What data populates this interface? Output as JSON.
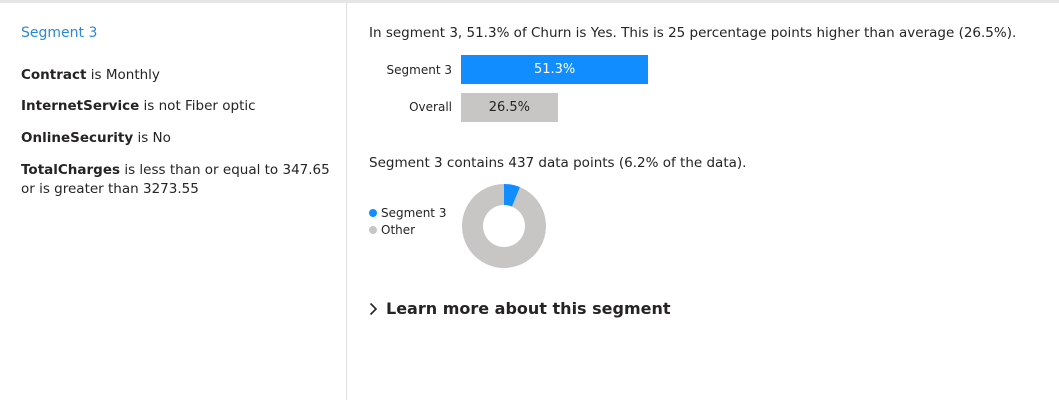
{
  "left": {
    "segment_title": "Segment 3",
    "conditions": [
      {
        "feature": "Contract",
        "text": "is Monthly"
      },
      {
        "feature": "InternetService",
        "text": "is not Fiber optic"
      },
      {
        "feature": "OnlineSecurity",
        "text": "is No"
      },
      {
        "feature": "TotalCharges",
        "text": "is less than or equal to 347.65 or is greater than 3273.55"
      }
    ]
  },
  "right": {
    "headline": "In segment 3, 51.3% of Churn is Yes. This is 25 percentage points higher than average (26.5%).",
    "contains_text": "Segment 3 contains 437 data points (6.2% of the data).",
    "learn_more": "Learn more about this segment"
  },
  "colors": {
    "segment": "#118dff",
    "overall": "#c8c6c4",
    "title_blue": "#2b88d8"
  },
  "chart_data": [
    {
      "type": "bar",
      "orientation": "horizontal",
      "categories": [
        "Segment 3",
        "Overall"
      ],
      "values": [
        51.3,
        26.5
      ],
      "value_labels": [
        "51.3%",
        "26.5%"
      ],
      "xlim": [
        0,
        100
      ]
    },
    {
      "type": "pie",
      "variant": "donut",
      "labels": [
        "Segment 3",
        "Other"
      ],
      "values": [
        6.2,
        93.8
      ],
      "legend": "left"
    }
  ]
}
